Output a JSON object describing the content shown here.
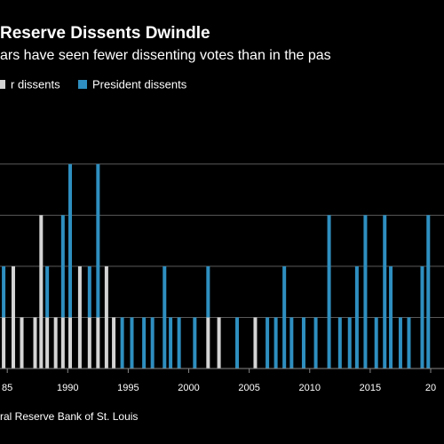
{
  "chart_data": {
    "type": "bar",
    "title": "Reserve Dissents Dwindle",
    "subtitle": "ars have seen fewer dissenting votes than in the pas",
    "source": "ral Reserve Bank of St. Louis",
    "stacked": true,
    "x": [
      1984.7,
      1985.5,
      1986.2,
      1987.3,
      1987.8,
      1988.3,
      1989.0,
      1989.6,
      1990.2,
      1991.0,
      1991.8,
      1992.5,
      1993.2,
      1993.8,
      1994.5,
      1995.3,
      1996.3,
      1997.0,
      1998.0,
      1998.5,
      1999.2,
      2000.5,
      2001.6,
      2002.5,
      2004.0,
      2005.5,
      2006.5,
      2007.2,
      2007.9,
      2008.5,
      2009.5,
      2010.5,
      2011.6,
      2012.5,
      2013.3,
      2013.9,
      2014.6,
      2015.5,
      2016.2,
      2016.7,
      2017.5,
      2018.2,
      2019.3,
      2019.8
    ],
    "series": [
      {
        "name": "r dissents",
        "color": "#d4d4d4",
        "values": [
          1,
          2,
          1,
          1,
          3,
          1,
          1,
          1,
          1,
          2,
          1,
          1,
          2,
          1,
          0,
          0,
          0,
          0,
          0,
          0,
          0,
          0,
          1,
          1,
          0,
          1,
          0,
          0,
          0,
          0,
          0,
          0,
          0,
          0,
          0,
          0,
          0,
          0,
          0,
          0,
          0,
          0,
          0,
          0
        ]
      },
      {
        "name": "President dissents",
        "color": "#2e8fc0",
        "values": [
          1,
          0,
          0,
          0,
          0,
          1,
          0,
          2,
          3,
          0,
          1,
          3,
          0,
          0,
          1,
          1,
          1,
          1,
          2,
          1,
          1,
          1,
          1,
          0,
          1,
          0,
          1,
          1,
          2,
          1,
          1,
          1,
          3,
          1,
          1,
          2,
          3,
          1,
          3,
          2,
          1,
          1,
          2,
          3
        ]
      }
    ],
    "xlim": [
      1984.4,
      2021.1
    ],
    "xticks": [
      {
        "value": 1985,
        "label": "85"
      },
      1990,
      1995,
      2000,
      2005,
      2010,
      2015,
      {
        "value": 2020,
        "label": "20"
      }
    ],
    "ylim": [
      0,
      4.5
    ],
    "yticks": [
      1,
      2,
      3,
      4
    ],
    "grid": true
  }
}
